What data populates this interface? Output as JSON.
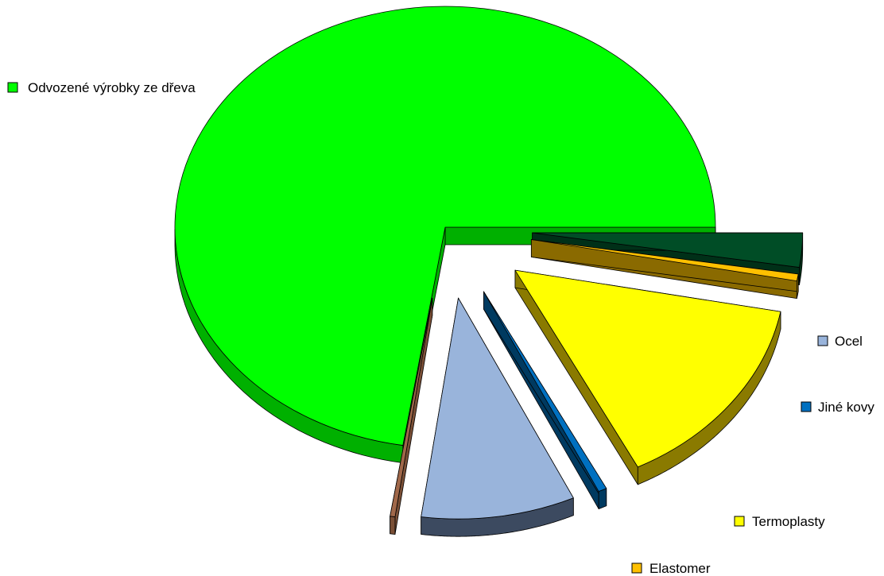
{
  "chart_data": {
    "type": "pie",
    "style": "3d-exploded",
    "legend_placement": "labels beside slices",
    "slices": [
      {
        "label": "Odvozené výrobky ze dřeva",
        "value": 72.5,
        "color": "#00FF00",
        "side": "#00B000"
      },
      {
        "label": "",
        "value": 0.3,
        "color": "#A0684A",
        "side": "#7A4F36"
      },
      {
        "label": "Ocel",
        "value": 9.2,
        "color": "#99B4DB",
        "side": "#3C4A60"
      },
      {
        "label": "Jiné kovy",
        "value": 0.5,
        "color": "#0070C0",
        "side": "#003A60"
      },
      {
        "label": "Termoplasty",
        "value": 14.5,
        "color": "#FFFF00",
        "side": "#8A7A00"
      },
      {
        "label": "Elastomer",
        "value": 0.5,
        "color": "#FFC000",
        "side": "#8A6A00"
      },
      {
        "label": "",
        "value": 2.5,
        "color": "#004D26",
        "side": "#003018"
      }
    ]
  }
}
